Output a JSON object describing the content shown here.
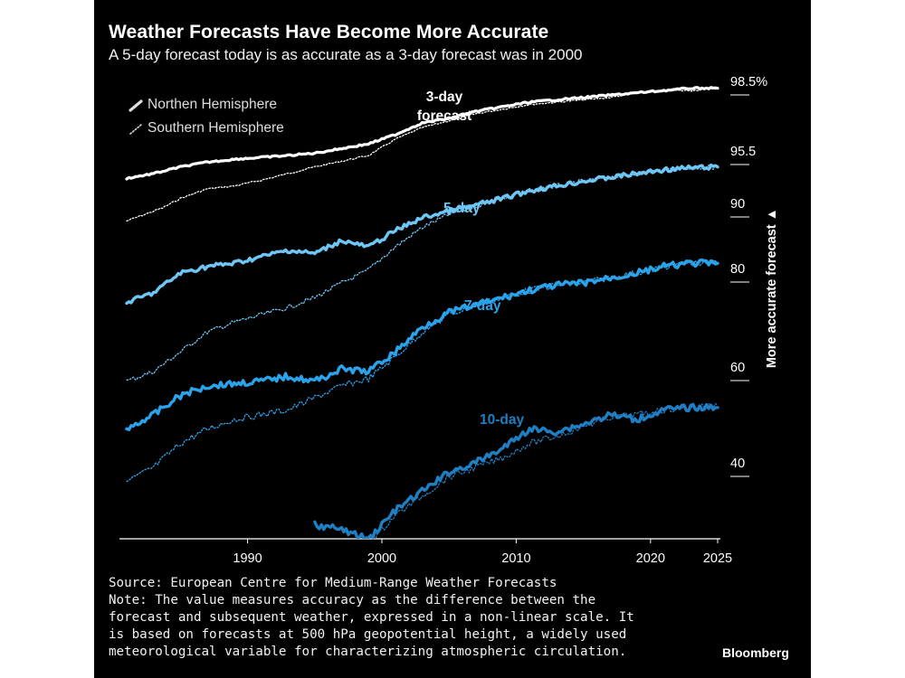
{
  "title": "Weather Forecasts Have Become More Accurate",
  "subtitle": "A 5-day forecast today is as accurate as a 3-day forecast was in 2000",
  "source": "Source: European Centre for Medium-Range Weather Forecasts",
  "note": "Note: The value measures accuracy as the difference between the forecast and subsequent weather, expressed in a non-linear scale. It is based on forecasts at 500 hPa geopotential height, a widely used meteorological variable for characterizing atmospheric circulation.",
  "brand": "Bloomberg",
  "colors": {
    "background": "#000000",
    "day3": "#ffffff",
    "day5": "#6ec6f5",
    "day7": "#2aa3eb",
    "day10": "#1f7fc2",
    "text": "#ffffff"
  },
  "chart_data": {
    "type": "line",
    "title": "Weather Forecasts Have Become More Accurate",
    "subtitle": "A 5-day forecast today is as accurate as a 3-day forecast was in 2000",
    "xlabel": "",
    "ylabel": "More accurate forecast",
    "ylabel_arrow": "▲",
    "scale": "non-linear",
    "xlim": [
      1981,
      2025
    ],
    "x_ticks": [
      1990,
      2000,
      2010,
      2020,
      2025
    ],
    "x_tick_labels": [
      "1990",
      "2000",
      "2010",
      "2020",
      "2025"
    ],
    "y_ticks": [
      98.5,
      95.5,
      90,
      80,
      60,
      40
    ],
    "y_tick_labels": [
      "98.5%",
      "95.5",
      "90",
      "80",
      "60",
      "40"
    ],
    "y_positions_rank": [
      0,
      1,
      2,
      3,
      4,
      5
    ],
    "legend": {
      "placement": "top-left",
      "entries": [
        {
          "label": "Northen Hemisphere",
          "style": "solid"
        },
        {
          "label": "Southern Hemisphere",
          "style": "dotted"
        }
      ]
    },
    "series_labels": [
      {
        "series": "3-day",
        "text_lines": [
          "3-day",
          "forecast"
        ]
      },
      {
        "series": "5-day",
        "text_lines": [
          "5-day"
        ]
      },
      {
        "series": "7-day",
        "text_lines": [
          "7-day"
        ]
      },
      {
        "series": "10-day",
        "text_lines": [
          "10-day"
        ]
      }
    ],
    "x": [
      1981,
      1983,
      1985,
      1987,
      1989,
      1991,
      1993,
      1995,
      1997,
      1999,
      2001,
      2003,
      2005,
      2007,
      2009,
      2011,
      2013,
      2015,
      2017,
      2019,
      2021,
      2023,
      2025
    ],
    "series": [
      {
        "name": "3-day",
        "hemisphere": "north",
        "style": "solid",
        "color": "#ffffff",
        "values": [
          93.1,
          93.6,
          94.3,
          94.8,
          95.1,
          95.3,
          95.5,
          95.6,
          95.8,
          96.0,
          96.4,
          96.9,
          97.1,
          97.4,
          97.6,
          97.8,
          97.9,
          98.0,
          98.1,
          98.2,
          98.3,
          98.4,
          98.4
        ]
      },
      {
        "name": "3-day",
        "hemisphere": "south",
        "style": "dotted",
        "color": "#ffffff",
        "values": [
          88.0,
          89.5,
          91.0,
          92.0,
          92.3,
          92.9,
          93.6,
          94.3,
          94.9,
          95.5,
          96.2,
          96.7,
          97.0,
          97.3,
          97.5,
          97.7,
          97.8,
          97.9,
          98.0,
          98.2,
          98.3,
          98.3,
          98.4
        ]
      },
      {
        "name": "5-day",
        "hemisphere": "north",
        "style": "solid",
        "color": "#6ec6f5",
        "values": [
          74.0,
          76.0,
          80.0,
          81.0,
          81.5,
          82.5,
          83.5,
          83.0,
          85.0,
          84.0,
          86.5,
          88.5,
          89.5,
          90.3,
          91.0,
          91.8,
          92.3,
          92.8,
          93.2,
          93.6,
          94.0,
          94.2,
          94.3
        ]
      },
      {
        "name": "5-day",
        "hemisphere": "south",
        "style": "dotted",
        "color": "#6ec6f5",
        "values": [
          58.0,
          60.0,
          64.0,
          68.0,
          70.0,
          71.5,
          73.0,
          75.0,
          78.0,
          80.5,
          84.0,
          87.0,
          89.0,
          90.2,
          91.0,
          91.8,
          92.3,
          92.8,
          93.2,
          93.6,
          94.0,
          94.2,
          94.3
        ]
      },
      {
        "name": "7-day",
        "hemisphere": "north",
        "style": "solid",
        "color": "#2aa3eb",
        "values": [
          48.0,
          51.0,
          55.0,
          57.0,
          57.5,
          58.0,
          59.0,
          58.0,
          60.5,
          60.0,
          64.0,
          69.0,
          72.0,
          73.5,
          75.0,
          76.5,
          77.5,
          78.0,
          79.0,
          80.0,
          81.0,
          81.5,
          81.5
        ]
      },
      {
        "name": "7-day",
        "hemisphere": "south",
        "style": "dotted",
        "color": "#2aa3eb",
        "values": [
          37.0,
          40.0,
          45.0,
          48.0,
          50.0,
          51.0,
          52.0,
          54.5,
          57.0,
          58.5,
          63.0,
          68.0,
          71.5,
          73.5,
          75.0,
          76.5,
          77.5,
          78.0,
          79.0,
          80.0,
          81.0,
          81.5,
          81.5
        ]
      },
      {
        "name": "10-day",
        "hemisphere": "north",
        "style": "solid",
        "color": "#1f7fc2",
        "values": [
          null,
          null,
          null,
          null,
          null,
          null,
          null,
          28.0,
          27.0,
          25.0,
          31.0,
          35.0,
          39.0,
          41.0,
          44.0,
          48.0,
          47.5,
          49.0,
          51.0,
          50.0,
          52.0,
          52.5,
          52.5
        ]
      },
      {
        "name": "10-day",
        "hemisphere": "south",
        "style": "dotted",
        "color": "#1f7fc2",
        "values": [
          null,
          null,
          null,
          null,
          null,
          null,
          null,
          null,
          null,
          24.0,
          30.0,
          34.0,
          38.0,
          40.0,
          42.0,
          45.0,
          46.5,
          48.5,
          50.5,
          51.0,
          52.0,
          52.5,
          53.0
        ]
      }
    ]
  }
}
